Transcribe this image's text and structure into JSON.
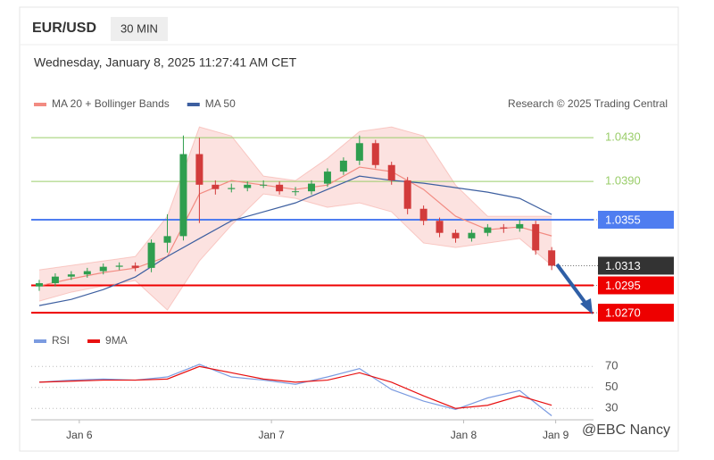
{
  "header": {
    "symbol": "EUR/USD",
    "interval": "30 MIN",
    "timestamp": "Wednesday, January 8, 2025 11:27:41 AM CET"
  },
  "watermark": "@EBC Nancy",
  "chart_data": [
    {
      "type": "candlestick",
      "credit": "Research © 2025 Trading Central",
      "x": [
        -5,
        -3,
        -1,
        1,
        3,
        5,
        7,
        9,
        11,
        13,
        15,
        17,
        19,
        21,
        23,
        25,
        27,
        29,
        31,
        33,
        35,
        37,
        39,
        41,
        43,
        45,
        47,
        49,
        51,
        53,
        55,
        57,
        59
      ],
      "open": [
        1.0294,
        1.0297,
        1.0303,
        1.0305,
        1.0308,
        1.0312,
        1.0313,
        1.0311,
        1.0334,
        1.034,
        1.0415,
        1.0387,
        1.0383,
        1.0384,
        1.0387,
        1.0387,
        1.0381,
        1.0381,
        1.0388,
        1.0399,
        1.0409,
        1.0425,
        1.0405,
        1.0391,
        1.0365,
        1.0354,
        1.0343,
        1.0338,
        1.0343,
        1.0348,
        1.0347,
        1.0351,
        1.0327
      ],
      "high": [
        1.03,
        1.0306,
        1.0308,
        1.0311,
        1.0315,
        1.0316,
        1.0316,
        1.0337,
        1.036,
        1.0432,
        1.043,
        1.0391,
        1.0388,
        1.039,
        1.0391,
        1.039,
        1.0385,
        1.0391,
        1.0402,
        1.0412,
        1.0432,
        1.0428,
        1.0408,
        1.0394,
        1.0368,
        1.0357,
        1.0346,
        1.0346,
        1.0351,
        1.0351,
        1.0355,
        1.0354,
        1.033
      ],
      "low": [
        1.029,
        1.0294,
        1.03,
        1.0302,
        1.0305,
        1.0309,
        1.0308,
        1.0307,
        1.0325,
        1.0336,
        1.0352,
        1.0378,
        1.038,
        1.0381,
        1.0384,
        1.0378,
        1.0377,
        1.0378,
        1.0385,
        1.0396,
        1.0405,
        1.0402,
        1.0387,
        1.036,
        1.035,
        1.0339,
        1.0334,
        1.0335,
        1.034,
        1.0343,
        1.0344,
        1.0323,
        1.0309
      ],
      "close": [
        1.0297,
        1.0303,
        1.0305,
        1.0308,
        1.0312,
        1.0313,
        1.0311,
        1.0334,
        1.034,
        1.0415,
        1.0387,
        1.0383,
        1.0384,
        1.0387,
        1.0387,
        1.0381,
        1.0381,
        1.0388,
        1.0399,
        1.0409,
        1.0425,
        1.0405,
        1.0391,
        1.0365,
        1.0354,
        1.0343,
        1.0338,
        1.0343,
        1.0348,
        1.0347,
        1.0351,
        1.0327,
        1.0313
      ],
      "up_color": "#2f9e4f",
      "down_color": "#d23b3b",
      "overlays": {
        "x": [
          -5,
          -1,
          3,
          7,
          11,
          15,
          19,
          23,
          27,
          31,
          35,
          39,
          43,
          47,
          51,
          55,
          59
        ],
        "series": [
          {
            "name": "MA 20 + Bollinger Bands",
            "color": "#f28b82",
            "values": [
              1.02945,
              1.0301,
              1.03067,
              1.03108,
              1.03214,
              1.03786,
              1.03908,
              1.03867,
              1.03827,
              1.03867,
              1.04031,
              1.0399,
              1.03827,
              1.03582,
              1.03459,
              1.03484,
              1.03402
            ],
            "upper": [
              1.03092,
              1.03133,
              1.03173,
              1.03214,
              1.03582,
              1.04398,
              1.04316,
              1.03949,
              1.03908,
              1.04112,
              1.04357,
              1.04398,
              1.04316,
              1.03867,
              1.03582,
              1.03582,
              1.03582
            ],
            "lower": [
              1.02806,
              1.02888,
              1.02945,
              1.02994,
              1.02724,
              1.03173,
              1.035,
              1.03786,
              1.03745,
              1.03663,
              1.03704,
              1.03622,
              1.03337,
              1.03296,
              1.03337,
              1.03378,
              1.03133
            ]
          },
          {
            "name": "MA 50",
            "color": "#3d5fa0",
            "values": [
              1.02765,
              1.02822,
              1.02912,
              1.03027,
              1.03214,
              1.03378,
              1.0354,
              1.03622,
              1.03704,
              1.03827,
              1.03949,
              1.0391,
              1.03884,
              1.03843,
              1.03802,
              1.03745,
              1.03598
            ]
          }
        ]
      },
      "levels": [
        {
          "value": 1.043,
          "label": "1.0430",
          "color": "#9acd6a",
          "boxed": false,
          "dotted": false
        },
        {
          "value": 1.039,
          "label": "1.0390",
          "color": "#9acd6a",
          "boxed": false,
          "dotted": false
        },
        {
          "value": 1.0355,
          "label": "1.0355",
          "color": "#4f7df0",
          "boxed": true,
          "dotted": false
        },
        {
          "value": 1.0313,
          "label": "1.0313",
          "color": "#333333",
          "boxed": true,
          "dotted": true
        },
        {
          "value": 1.0295,
          "label": "1.0295",
          "color": "#ee0000",
          "boxed": true,
          "dotted": false
        },
        {
          "value": 1.027,
          "label": "1.0270",
          "color": "#ee0000",
          "boxed": true,
          "dotted": false
        }
      ],
      "xlim": [
        -6,
        64
      ],
      "xticks": [
        {
          "value": 0,
          "label": "Jan 6"
        },
        {
          "value": 24,
          "label": "Jan 7"
        },
        {
          "value": 48,
          "label": "Jan 8"
        },
        {
          "value": 59.5,
          "label": "Jan 9"
        }
      ],
      "ylim": [
        1.0266,
        1.0444
      ]
    },
    {
      "type": "line",
      "x": [
        -5,
        -1,
        3,
        7,
        11,
        15,
        19,
        23,
        27,
        31,
        35,
        39,
        43,
        47,
        51,
        55,
        59
      ],
      "series": [
        {
          "name": "RSI",
          "color": "#7b9be0",
          "values": [
            55,
            57,
            58,
            57,
            60,
            72,
            60,
            57,
            53,
            60,
            68,
            48,
            37,
            29,
            40,
            47,
            23
          ]
        },
        {
          "name": "9MA",
          "color": "#e81010",
          "values": [
            55,
            56,
            57,
            57,
            58,
            70,
            64,
            58,
            55,
            57,
            64,
            55,
            42,
            30,
            33,
            42,
            33
          ]
        }
      ],
      "xlim": [
        -6,
        64
      ],
      "ylim": [
        20,
        83
      ],
      "yticks": [
        70,
        50,
        30
      ],
      "grid": true
    }
  ]
}
